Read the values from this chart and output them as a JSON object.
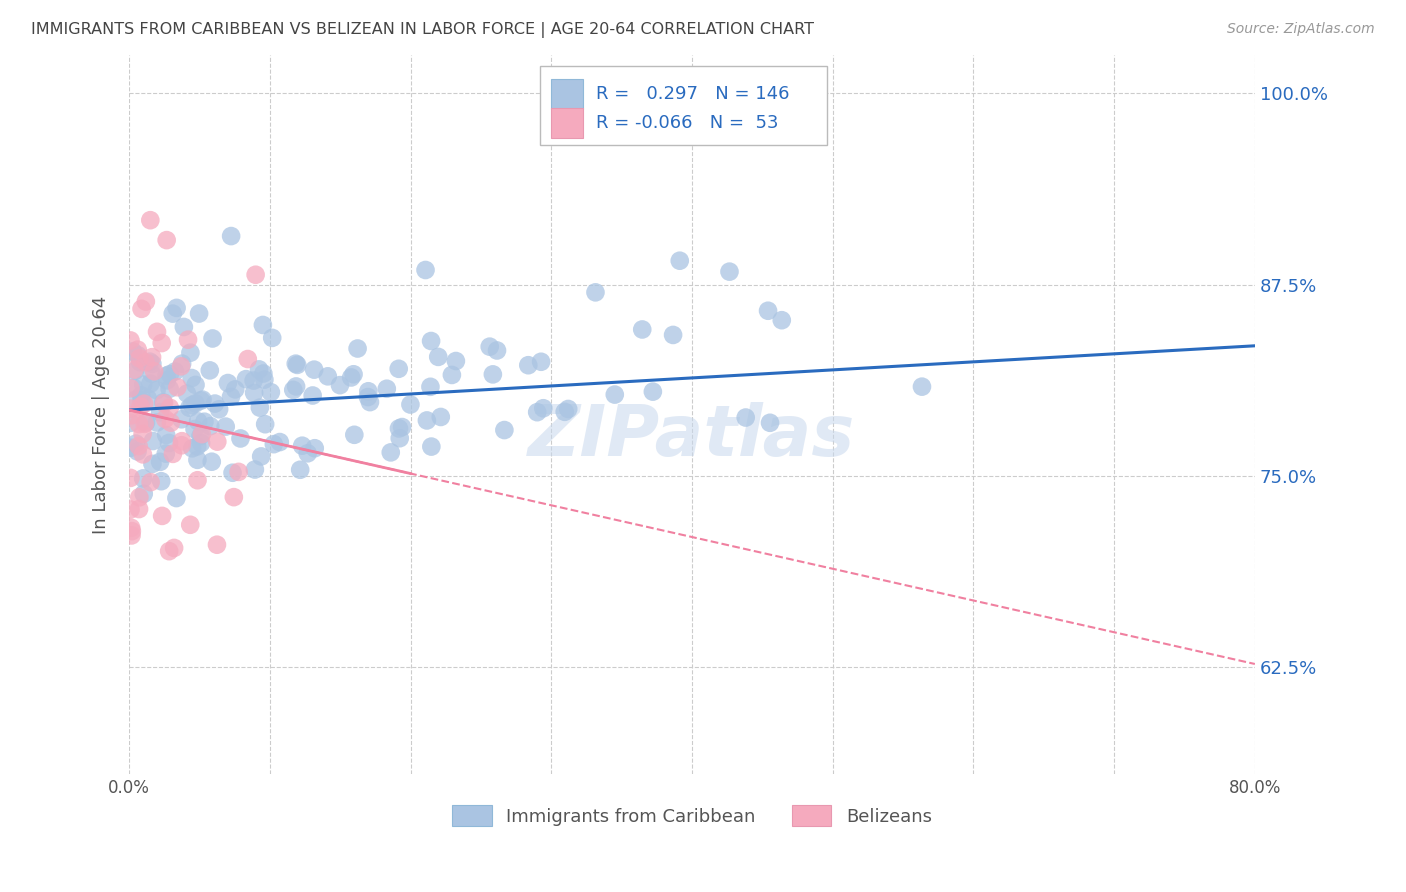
{
  "title": "IMMIGRANTS FROM CARIBBEAN VS BELIZEAN IN LABOR FORCE | AGE 20-64 CORRELATION CHART",
  "source": "Source: ZipAtlas.com",
  "ylabel": "In Labor Force | Age 20-64",
  "x_min": 0.0,
  "x_max": 0.8,
  "y_min": 0.555,
  "y_max": 1.025,
  "y_ticks": [
    0.625,
    0.75,
    0.875,
    1.0
  ],
  "y_tick_labels": [
    "62.5%",
    "75.0%",
    "87.5%",
    "100.0%"
  ],
  "x_ticks": [
    0.0,
    0.1,
    0.2,
    0.3,
    0.4,
    0.5,
    0.6,
    0.7,
    0.8
  ],
  "x_tick_labels": [
    "0.0%",
    "",
    "",
    "",
    "",
    "",
    "",
    "",
    "80.0%"
  ],
  "blue_R": 0.297,
  "blue_N": 146,
  "pink_R": -0.066,
  "pink_N": 53,
  "blue_color": "#aac4e2",
  "pink_color": "#f5aabe",
  "blue_line_color": "#2a6bbf",
  "pink_line_color": "#f080a0",
  "grid_color": "#cccccc",
  "title_color": "#444444",
  "legend_text_color": "#2a6bbf",
  "legend_label_color": "#444444",
  "watermark": "ZIPatlas",
  "blue_line_y0": 0.793,
  "blue_line_y1": 0.835,
  "pink_line_y0": 0.793,
  "pink_line_y1": 0.627
}
